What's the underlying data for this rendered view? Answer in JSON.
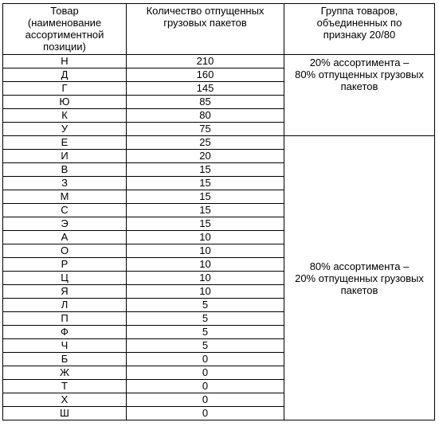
{
  "table": {
    "headers": [
      "Товар\n(наименование\nассортиментной\nпозиции)",
      "Количество отпущенных\nгрузовых пакетов",
      "Группа товаров,\nобъединенных по\nпризнаку 20/80"
    ],
    "groups": [
      {
        "label": "20% ассортимента –\n80% отпущенных грузовых\nпакетов",
        "rows": [
          {
            "item": "Н",
            "count": "210"
          },
          {
            "item": "Д",
            "count": "160"
          },
          {
            "item": "Г",
            "count": "145"
          },
          {
            "item": "Ю",
            "count": "85"
          },
          {
            "item": "К",
            "count": "80"
          },
          {
            "item": "У",
            "count": "75"
          }
        ]
      },
      {
        "label": "80% ассортимента –\n20% отпущенных грузовых\nпакетов",
        "rows": [
          {
            "item": "Е",
            "count": "25"
          },
          {
            "item": "И",
            "count": "20"
          },
          {
            "item": "В",
            "count": "15"
          },
          {
            "item": "З",
            "count": "15"
          },
          {
            "item": "М",
            "count": "15"
          },
          {
            "item": "С",
            "count": "15"
          },
          {
            "item": "Э",
            "count": "15"
          },
          {
            "item": "А",
            "count": "10"
          },
          {
            "item": "О",
            "count": "10"
          },
          {
            "item": "Р",
            "count": "10"
          },
          {
            "item": "Ц",
            "count": "10"
          },
          {
            "item": "Я",
            "count": "10"
          },
          {
            "item": "Л",
            "count": "5"
          },
          {
            "item": "П",
            "count": "5"
          },
          {
            "item": "Ф",
            "count": "5"
          },
          {
            "item": "Ч",
            "count": "5"
          },
          {
            "item": "Б",
            "count": "0"
          },
          {
            "item": "Ж",
            "count": "0"
          },
          {
            "item": "Т",
            "count": "0"
          },
          {
            "item": "Х",
            "count": "0"
          },
          {
            "item": "Ш",
            "count": "0"
          }
        ]
      }
    ]
  }
}
